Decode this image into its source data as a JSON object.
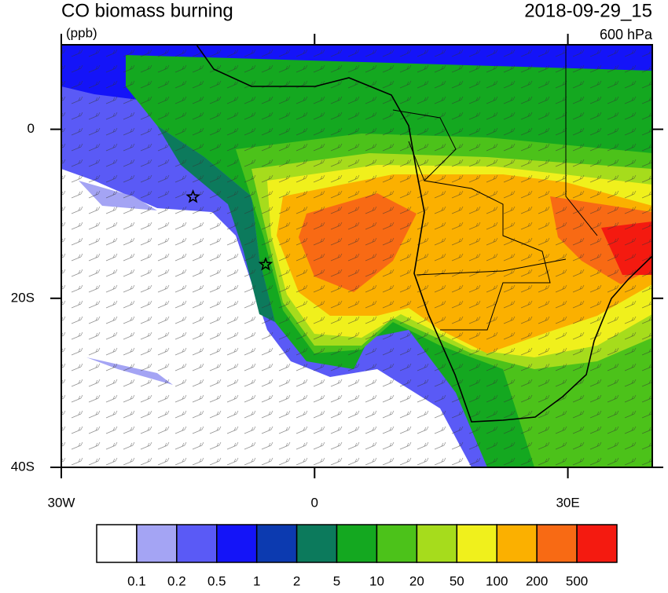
{
  "chart_data": {
    "type": "map",
    "title": "CO biomass burning",
    "subtitle": "(ppb)",
    "date": "2018-09-29_15",
    "level": "600 hPa",
    "xlim": [
      -30,
      40
    ],
    "ylim": [
      -40,
      10
    ],
    "xticks": [
      {
        "value": -30,
        "label": "30W"
      },
      0,
      {
        "value": 30,
        "label": "30E"
      }
    ],
    "yticks": [
      0,
      {
        "value": -20,
        "label": "20S"
      },
      {
        "value": -40,
        "label": "40S"
      }
    ],
    "markers": [
      {
        "lon": -14.4,
        "lat": -8
      },
      {
        "lon": -5.8,
        "lat": -16
      }
    ],
    "colorbar": {
      "levels": [
        0.1,
        0.2,
        0.5,
        1,
        2,
        5,
        10,
        20,
        50,
        100,
        200,
        500
      ],
      "colors": [
        "#ffffff",
        "#a4a4f4",
        "#5a5af6",
        "#1414f8",
        "#0c3ab0",
        "#0c7a5c",
        "#14a820",
        "#4cc21a",
        "#a6dc1c",
        "#f0f01c",
        "#fbb000",
        "#f86a14",
        "#f41a10"
      ]
    }
  }
}
